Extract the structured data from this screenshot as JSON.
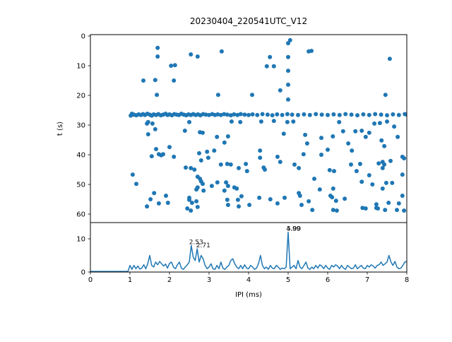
{
  "title": "20230404_220541UTC_V12",
  "colors": {
    "accent": "#1f77b4",
    "axis": "#000000"
  },
  "chart_data": [
    {
      "type": "scatter",
      "name": "ipi-vs-time-scatter",
      "xlabel": "",
      "ylabel": "t (s)",
      "xlim": [
        0,
        8
      ],
      "ylim": [
        62,
        0
      ],
      "yticks": [
        0,
        10,
        20,
        30,
        40,
        50,
        60
      ],
      "grid": false,
      "marker_color": "#1f77b4",
      "points": [
        [
          1.02,
          26.8
        ],
        [
          1.05,
          26.2
        ],
        [
          1.1,
          26.5
        ],
        [
          1.16,
          26.7
        ],
        [
          1.22,
          26.4
        ],
        [
          1.28,
          26.6
        ],
        [
          1.33,
          26.3
        ],
        [
          1.38,
          26.6
        ],
        [
          1.44,
          26.2
        ],
        [
          1.5,
          26.5
        ],
        [
          1.55,
          26.8
        ],
        [
          1.6,
          26.4
        ],
        [
          1.66,
          26.6
        ],
        [
          1.72,
          26.3
        ],
        [
          1.78,
          26.7
        ],
        [
          1.84,
          26.5
        ],
        [
          1.9,
          26.2
        ],
        [
          1.95,
          26.6
        ],
        [
          2.0,
          26.4
        ],
        [
          2.06,
          26.7
        ],
        [
          2.12,
          26.3
        ],
        [
          2.18,
          26.5
        ],
        [
          2.24,
          26.6
        ],
        [
          2.3,
          26.2
        ],
        [
          2.36,
          26.5
        ],
        [
          2.42,
          26.7
        ],
        [
          2.48,
          26.4
        ],
        [
          2.54,
          26.6
        ],
        [
          2.6,
          26.3
        ],
        [
          2.66,
          26.6
        ],
        [
          2.72,
          26.4
        ],
        [
          2.78,
          26.7
        ],
        [
          2.85,
          26.3
        ],
        [
          2.92,
          26.5
        ],
        [
          3.0,
          26.6
        ],
        [
          3.08,
          26.3
        ],
        [
          3.15,
          26.6
        ],
        [
          3.22,
          26.4
        ],
        [
          3.3,
          26.6
        ],
        [
          3.38,
          26.3
        ],
        [
          3.46,
          26.5
        ],
        [
          3.55,
          26.7
        ],
        [
          3.63,
          26.4
        ],
        [
          3.72,
          26.6
        ],
        [
          3.8,
          26.3
        ],
        [
          3.9,
          26.5
        ],
        [
          4.0,
          26.6
        ],
        [
          4.1,
          26.4
        ],
        [
          4.22,
          26.6
        ],
        [
          4.35,
          26.3
        ],
        [
          4.48,
          26.5
        ],
        [
          4.6,
          26.7
        ],
        [
          4.72,
          26.4
        ],
        [
          4.85,
          26.6
        ],
        [
          4.98,
          26.3
        ],
        [
          5.1,
          26.5
        ],
        [
          5.25,
          26.6
        ],
        [
          5.4,
          26.4
        ],
        [
          5.55,
          26.6
        ],
        [
          5.7,
          26.3
        ],
        [
          5.85,
          26.5
        ],
        [
          6.0,
          26.6
        ],
        [
          6.15,
          26.4
        ],
        [
          6.3,
          26.6
        ],
        [
          6.45,
          26.3
        ],
        [
          6.6,
          26.5
        ],
        [
          6.75,
          26.7
        ],
        [
          6.9,
          26.4
        ],
        [
          7.05,
          26.6
        ],
        [
          7.2,
          26.3
        ],
        [
          7.35,
          26.5
        ],
        [
          7.5,
          26.7
        ],
        [
          7.65,
          26.4
        ],
        [
          7.8,
          26.6
        ],
        [
          7.95,
          26.3
        ],
        [
          8.0,
          26.5
        ],
        [
          1.7,
          4.0
        ],
        [
          1.7,
          6.9
        ],
        [
          2.04,
          10.0
        ],
        [
          2.14,
          9.8
        ],
        [
          1.34,
          15.0
        ],
        [
          1.64,
          14.8
        ],
        [
          2.11,
          15.0
        ],
        [
          1.68,
          19.8
        ],
        [
          2.54,
          6.2
        ],
        [
          2.71,
          6.9
        ],
        [
          3.32,
          5.2
        ],
        [
          5.0,
          2.4
        ],
        [
          5.05,
          1.4
        ],
        [
          5.52,
          5.2
        ],
        [
          4.54,
          7.1
        ],
        [
          5.0,
          7.1
        ],
        [
          4.46,
          10.2
        ],
        [
          4.64,
          10.2
        ],
        [
          5.0,
          11.7
        ],
        [
          5.0,
          16.4
        ],
        [
          4.8,
          18.3
        ],
        [
          5.0,
          21.4
        ],
        [
          3.23,
          19.8
        ],
        [
          4.09,
          19.8
        ],
        [
          5.59,
          5.0
        ],
        [
          7.57,
          7.7
        ],
        [
          7.46,
          19.8
        ],
        [
          1.46,
          29.0
        ],
        [
          1.57,
          29.5
        ],
        [
          1.64,
          31.4
        ],
        [
          1.43,
          29.5
        ],
        [
          1.46,
          33.1
        ],
        [
          1.66,
          38.1
        ],
        [
          2.0,
          37.4
        ],
        [
          1.55,
          40.5
        ],
        [
          1.73,
          39.8
        ],
        [
          1.79,
          40.2
        ],
        [
          1.84,
          39.8
        ],
        [
          2.11,
          40.7
        ],
        [
          1.07,
          46.7
        ],
        [
          1.16,
          49.8
        ],
        [
          1.61,
          52.9
        ],
        [
          1.52,
          55.0
        ],
        [
          1.43,
          57.4
        ],
        [
          1.73,
          56.4
        ],
        [
          1.91,
          53.8
        ],
        [
          1.96,
          56.2
        ],
        [
          2.5,
          55.2
        ],
        [
          2.5,
          29.0
        ],
        [
          3.57,
          28.8
        ],
        [
          3.79,
          29.0
        ],
        [
          4.32,
          28.8
        ],
        [
          4.64,
          28.6
        ],
        [
          4.98,
          29.0
        ],
        [
          5.13,
          28.8
        ],
        [
          2.39,
          31.9
        ],
        [
          2.77,
          32.4
        ],
        [
          2.84,
          32.6
        ],
        [
          3.2,
          34.0
        ],
        [
          3.48,
          33.8
        ],
        [
          3.39,
          35.9
        ],
        [
          4.89,
          32.9
        ],
        [
          5.43,
          33.3
        ],
        [
          5.48,
          36.2
        ],
        [
          5.84,
          34.3
        ],
        [
          2.75,
          39.5
        ],
        [
          2.95,
          39.0
        ],
        [
          3.13,
          38.6
        ],
        [
          2.98,
          41.0
        ],
        [
          2.8,
          41.9
        ],
        [
          4.29,
          38.6
        ],
        [
          4.29,
          41.0
        ],
        [
          4.73,
          40.7
        ],
        [
          4.8,
          42.4
        ],
        [
          5.39,
          39.8
        ],
        [
          3.3,
          43.3
        ],
        [
          3.46,
          43.1
        ],
        [
          3.55,
          43.3
        ],
        [
          3.93,
          43.1
        ],
        [
          3.96,
          45.5
        ],
        [
          3.75,
          44.5
        ],
        [
          2.54,
          44.5
        ],
        [
          2.63,
          45.0
        ],
        [
          2.41,
          44.3
        ],
        [
          4.38,
          44.3
        ],
        [
          4.41,
          45.0
        ],
        [
          5.16,
          43.3
        ],
        [
          5.27,
          44.5
        ],
        [
          5.66,
          48.1
        ],
        [
          5.8,
          51.7
        ],
        [
          2.71,
          47.4
        ],
        [
          2.77,
          48.1
        ],
        [
          2.8,
          49.0
        ],
        [
          2.84,
          49.8
        ],
        [
          2.71,
          51.0
        ],
        [
          2.68,
          51.7
        ],
        [
          2.86,
          52.1
        ],
        [
          3.07,
          50.5
        ],
        [
          3.21,
          49.3
        ],
        [
          3.43,
          49.3
        ],
        [
          3.48,
          50.5
        ],
        [
          3.64,
          51.0
        ],
        [
          3.7,
          51.4
        ],
        [
          3.39,
          52.1
        ],
        [
          2.5,
          54.5
        ],
        [
          2.57,
          56.2
        ],
        [
          2.68,
          55.7
        ],
        [
          2.71,
          57.6
        ],
        [
          2.54,
          58.8
        ],
        [
          2.45,
          58.1
        ],
        [
          3.46,
          55.2
        ],
        [
          3.48,
          56.9
        ],
        [
          3.73,
          55.2
        ],
        [
          3.75,
          57.4
        ],
        [
          3.82,
          54.0
        ],
        [
          4.02,
          56.9
        ],
        [
          4.27,
          54.5
        ],
        [
          4.55,
          55.0
        ],
        [
          4.73,
          56.4
        ],
        [
          4.91,
          54.5
        ],
        [
          5.27,
          52.9
        ],
        [
          5.3,
          53.8
        ],
        [
          5.34,
          56.9
        ],
        [
          5.52,
          55.7
        ],
        [
          5.61,
          58.6
        ],
        [
          6.29,
          29.0
        ],
        [
          7.18,
          29.5
        ],
        [
          7.32,
          29.3
        ],
        [
          7.5,
          28.8
        ],
        [
          7.68,
          30.5
        ],
        [
          6.39,
          32.1
        ],
        [
          6.7,
          32.1
        ],
        [
          6.86,
          31.9
        ],
        [
          6.13,
          33.8
        ],
        [
          7.05,
          32.6
        ],
        [
          6.96,
          34.0
        ],
        [
          7.36,
          35.2
        ],
        [
          7.77,
          34.0
        ],
        [
          6.0,
          38.3
        ],
        [
          6.52,
          36.2
        ],
        [
          6.61,
          38.6
        ],
        [
          5.84,
          40.0
        ],
        [
          7.43,
          37.1
        ],
        [
          6.82,
          43.1
        ],
        [
          6.59,
          43.3
        ],
        [
          6.05,
          45.2
        ],
        [
          6.16,
          45.5
        ],
        [
          6.73,
          45.5
        ],
        [
          7.29,
          42.9
        ],
        [
          7.39,
          42.4
        ],
        [
          7.43,
          43.3
        ],
        [
          7.59,
          42.1
        ],
        [
          7.39,
          44.5
        ],
        [
          7.89,
          40.7
        ],
        [
          7.93,
          41.2
        ],
        [
          7.89,
          46.7
        ],
        [
          7.05,
          46.9
        ],
        [
          6.86,
          49.1
        ],
        [
          7.13,
          50.0
        ],
        [
          7.48,
          49.5
        ],
        [
          7.63,
          49.5
        ],
        [
          7.39,
          51.4
        ],
        [
          6.14,
          51.4
        ],
        [
          6.07,
          53.8
        ],
        [
          6.11,
          54.3
        ],
        [
          6.21,
          55.5
        ],
        [
          6.43,
          54.8
        ],
        [
          6.14,
          58.6
        ],
        [
          6.23,
          58.8
        ],
        [
          7.23,
          57.9
        ],
        [
          7.27,
          58.1
        ],
        [
          7.23,
          56.7
        ],
        [
          7.54,
          56.2
        ],
        [
          7.45,
          58.6
        ],
        [
          7.75,
          58.6
        ],
        [
          7.8,
          56.4
        ],
        [
          7.89,
          53.8
        ],
        [
          7.93,
          58.8
        ],
        [
          6.88,
          57.9
        ],
        [
          6.96,
          58.1
        ]
      ]
    },
    {
      "type": "line",
      "name": "ipi-count-histogram",
      "xlabel": "IPI (ms)",
      "ylabel": "",
      "xlim": [
        0,
        8
      ],
      "ylim": [
        0,
        14.9
      ],
      "xticks": [
        0,
        1,
        2,
        3,
        4,
        5,
        6,
        7,
        8
      ],
      "yticks": [
        0,
        10
      ],
      "grid": false,
      "line_color": "#1f77b4",
      "x_start": 0,
      "x_step": 0.05,
      "values": [
        0.2,
        0.2,
        0.2,
        0.2,
        0.2,
        0.2,
        0.2,
        0.2,
        0.2,
        0.2,
        0.2,
        0.2,
        0.2,
        0.2,
        0.2,
        0.2,
        0.2,
        0.2,
        0.2,
        0.2,
        2,
        0.8,
        2,
        1,
        1.8,
        0.9,
        1.2,
        2.2,
        1,
        2.5,
        5,
        2,
        1.5,
        3,
        2.2,
        3.2,
        2.5,
        1.8,
        2.4,
        1.2,
        2.6,
        3,
        1.5,
        1,
        2.2,
        3,
        1.2,
        0.8,
        1.5,
        2.2,
        3,
        8,
        4.5,
        3.5,
        7,
        3,
        5,
        4,
        2,
        1,
        1.5,
        2.5,
        1,
        0.8,
        2,
        1,
        3,
        1.2,
        0.8,
        1.5,
        2,
        3.5,
        4,
        2.5,
        1.5,
        1,
        2,
        1,
        2.2,
        1.2,
        1,
        2,
        1.5,
        0.8,
        1.2,
        2.5,
        5,
        2,
        1,
        1.5,
        0.8,
        2,
        1.2,
        1,
        2,
        1.5,
        0.8,
        1.2,
        1,
        1.5,
        12,
        1,
        1.5,
        2,
        1,
        3.5,
        1.5,
        1,
        2,
        3,
        1.2,
        0.8,
        1.5,
        1,
        2,
        1.2,
        2.2,
        1.8,
        1,
        2,
        1.2,
        0.8,
        2,
        1.5,
        2.2,
        1.8,
        1,
        2,
        1.2,
        0.8,
        2,
        1.5,
        1,
        1.2,
        2.2,
        1,
        1.5,
        2,
        1.2,
        1,
        2,
        1.5,
        2.2,
        1.8,
        1.2,
        2,
        2.2,
        3,
        2,
        2.5,
        3,
        5,
        3,
        2,
        3.2,
        1.5,
        1,
        1.2,
        2,
        3,
        3.2
      ],
      "annotations": [
        {
          "label": "2.53",
          "x": 2.53,
          "y": 8
        },
        {
          "label": "2.71",
          "x": 2.71,
          "y": 7
        },
        {
          "label": "4.99",
          "x": 4.99,
          "y": 12
        },
        {
          "label": "5.00",
          "x": 5.0,
          "y": 12
        }
      ]
    }
  ]
}
